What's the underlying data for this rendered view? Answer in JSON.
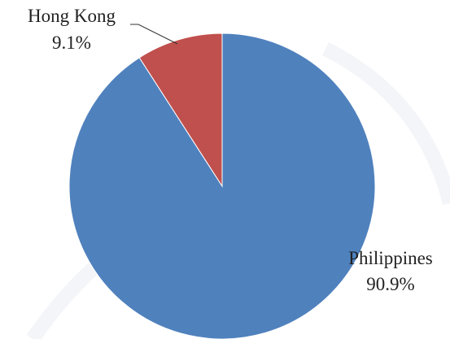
{
  "chart_data": {
    "type": "pie",
    "categories": [
      "Philippines",
      "Hong Kong"
    ],
    "values": [
      90.9,
      9.1
    ],
    "value_labels": [
      "90.9%",
      "9.1%"
    ],
    "colors": [
      "#4f81bd",
      "#c0504d"
    ]
  }
}
